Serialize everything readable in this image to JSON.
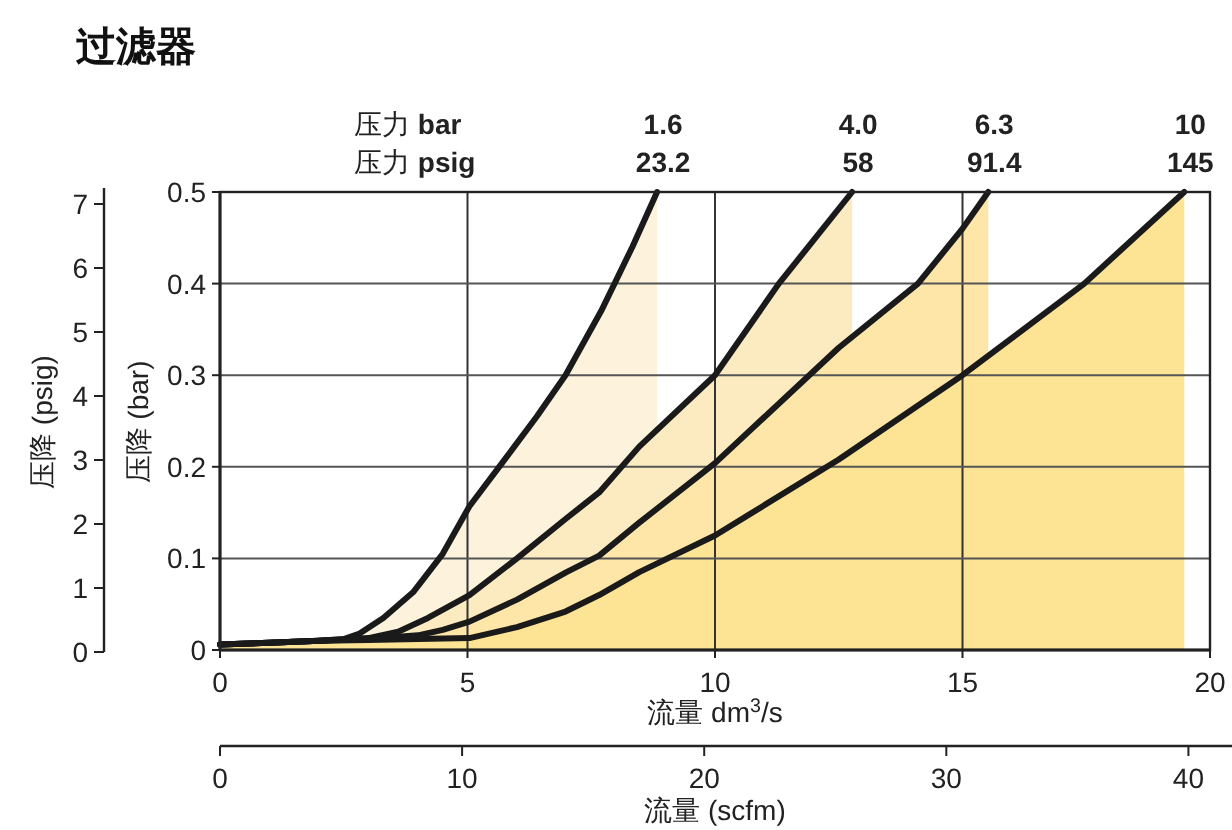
{
  "chart_data": {
    "type": "area",
    "title": "过滤器",
    "xlabel": "流量 dm$^{3}$/s",
    "ylabel": "压降 (bar)",
    "y2label": "压降 (psig)",
    "x2label": "流量 (scfm)",
    "xlim": [
      0,
      20
    ],
    "xticks": [
      0,
      5,
      10,
      15,
      20
    ],
    "ylim": [
      0,
      0.5
    ],
    "yticks": [
      0,
      0.1,
      0.2,
      0.3,
      0.4,
      0.5
    ],
    "y2lim": [
      0,
      7.25
    ],
    "y2ticks": [
      0,
      1,
      2,
      3,
      4,
      5,
      6,
      7
    ],
    "x2lim": [
      0,
      41.8
    ],
    "x2ticks": [
      0,
      10,
      20,
      30,
      40
    ],
    "grid": true,
    "marker": "none",
    "line_style": "solid",
    "annotations": [
      "压力 **bar**",
      "压力 **psig**",
      {
        "text": "1.6",
        "x": 8.83,
        "y": 0.5
      },
      {
        "text": "4.0",
        "x": 12.77,
        "y": 0.5
      },
      {
        "text": "6.3",
        "x": 15.52,
        "y": 0.5
      },
      {
        "text": "10",
        "x": 19.48,
        "y": 0.5
      },
      {
        "text": "23.2",
        "x": 8.83,
        "y": 0.5
      },
      {
        "text": "58",
        "x": 12.77,
        "y": 0.5
      },
      {
        "text": "91.4",
        "x": 15.52,
        "y": 0.5
      },
      {
        "text": "145",
        "x": 19.48,
        "y": 0.5
      }
    ],
    "series": [
      {
        "color": "#fdf3dc",
        "x": [
          0,
          1,
          2,
          2.5,
          2.82,
          3.3,
          3.9,
          4.5,
          5.04,
          5.78,
          6.4,
          6.98,
          7.7,
          8.33,
          8.83
        ],
        "values": [
          0.006,
          0.008,
          0.01,
          0.012,
          0.018,
          0.035,
          0.063,
          0.105,
          0.157,
          0.21,
          0.255,
          0.3,
          0.37,
          0.44,
          0.5
        ]
      },
      {
        "color": "#fcebc0",
        "x": [
          0,
          1,
          2,
          3,
          3.6,
          4.2,
          5.04,
          6,
          6.98,
          7.66,
          8.47,
          10,
          11.29,
          12.77
        ],
        "values": [
          0.006,
          0.008,
          0.01,
          0.013,
          0.02,
          0.035,
          0.06,
          0.1,
          0.143,
          0.172,
          0.222,
          0.3,
          0.4,
          0.5
        ]
      },
      {
        "color": "#fde6a8",
        "x": [
          0,
          1,
          2,
          3,
          4,
          4.5,
          5.04,
          6,
          7,
          7.66,
          8.47,
          10,
          12.5,
          14.1,
          15,
          15.52
        ],
        "values": [
          0.006,
          0.008,
          0.01,
          0.012,
          0.016,
          0.022,
          0.031,
          0.055,
          0.085,
          0.103,
          0.139,
          0.204,
          0.33,
          0.4,
          0.46,
          0.5
        ]
      },
      {
        "color": "#fde394",
        "x": [
          0,
          1,
          2,
          3,
          4,
          5.04,
          6,
          6.98,
          7.66,
          8.47,
          10,
          12.5,
          15,
          17.46,
          19.48
        ],
        "values": [
          0.006,
          0.008,
          0.01,
          0.011,
          0.012,
          0.013,
          0.025,
          0.042,
          0.06,
          0.085,
          0.125,
          0.208,
          0.3,
          0.4,
          0.5
        ]
      }
    ]
  }
}
